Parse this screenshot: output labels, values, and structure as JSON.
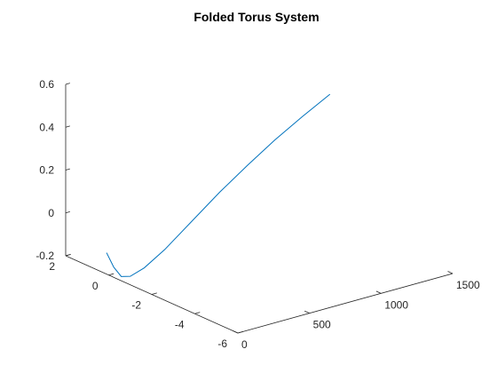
{
  "chart_data": {
    "type": "line",
    "projection": "3d",
    "title": "Folded Torus System",
    "xlabel": "",
    "ylabel": "",
    "zlabel": "",
    "grid": false,
    "legend": "none",
    "axes": {
      "x": {
        "lim": [
          0,
          1500
        ],
        "ticks": [
          0,
          500,
          1000,
          1500
        ],
        "tick_labels": [
          "0",
          "500",
          "1000",
          "1500"
        ]
      },
      "y": {
        "lim": [
          -6,
          2
        ],
        "ticks": [
          -6,
          -4,
          -2,
          0,
          2
        ],
        "tick_labels": [
          "-6",
          "-4",
          "-2",
          "0",
          "2"
        ]
      },
      "z": {
        "lim": [
          -0.2,
          0.6
        ],
        "ticks": [
          -0.2,
          0,
          0.2,
          0.4,
          0.6
        ],
        "tick_labels": [
          "-0.2",
          "0",
          "0.2",
          "0.4",
          "0.6"
        ]
      }
    },
    "series": [
      {
        "color": "#0072BD",
        "x": [
          0,
          5,
          20,
          60,
          150,
          300,
          500,
          700,
          900,
          1100,
          1300,
          1500
        ],
        "y": [
          0.1,
          -0.2,
          -0.45,
          -0.6,
          -0.65,
          -0.6,
          -0.55,
          -0.5,
          -0.45,
          -0.4,
          -0.35,
          -0.3
        ],
        "z": [
          -0.1,
          -0.155,
          -0.19,
          -0.19,
          -0.165,
          -0.11,
          -0.015,
          0.08,
          0.165,
          0.245,
          0.315,
          0.38
        ]
      }
    ]
  }
}
